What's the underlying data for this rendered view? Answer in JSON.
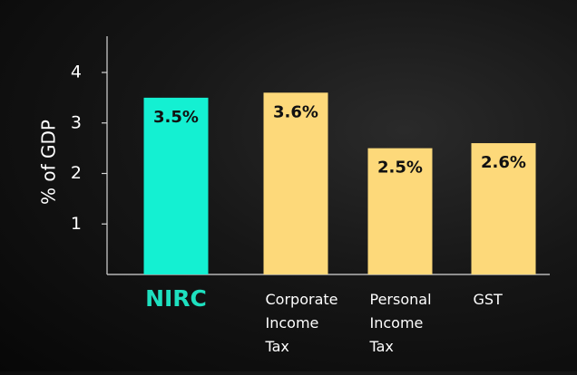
{
  "chart_data": {
    "type": "bar",
    "ylabel": "% of GDP",
    "ylim": [
      0,
      4.75
    ],
    "yticks": [
      1,
      2,
      3,
      4
    ],
    "grid": false,
    "categories": [
      {
        "lines": [
          "NIRC"
        ],
        "highlight": true
      },
      {
        "lines": [
          "Corporate",
          "Income",
          "Tax"
        ],
        "highlight": false
      },
      {
        "lines": [
          "Personal",
          "Income",
          "Tax"
        ],
        "highlight": false
      },
      {
        "lines": [
          "GST"
        ],
        "highlight": false
      }
    ],
    "values": [
      3.5,
      3.6,
      2.5,
      2.6
    ],
    "data_labels": [
      "3.5%",
      "3.6%",
      "2.5%",
      "2.6%"
    ]
  },
  "colors": {
    "highlight_bar": "#14f0d2",
    "default_bar": "#fdd97a",
    "highlight_label": "#1ee0bf",
    "axis": "#d6d6d6",
    "text": "#ffffff",
    "value_text": "#111111"
  }
}
